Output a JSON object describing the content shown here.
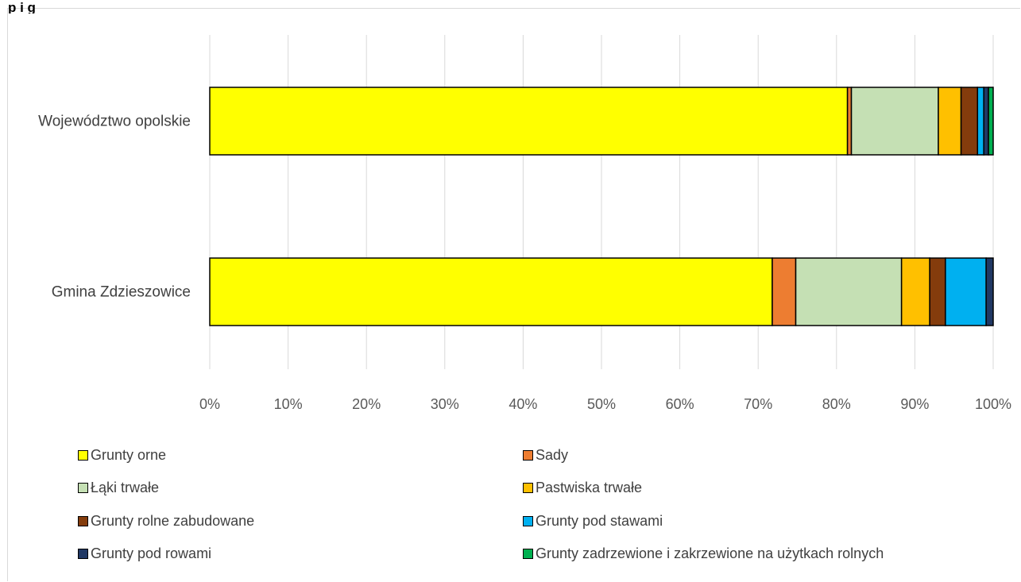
{
  "header": {
    "title_fragment": "p i g"
  },
  "chart_data": {
    "type": "bar",
    "orientation": "horizontal",
    "stacked": "percent",
    "title": "",
    "xlabel": "",
    "ylabel": "",
    "xlim": [
      0,
      100
    ],
    "grid": true,
    "legend_position": "bottom",
    "x_ticks": [
      "0%",
      "10%",
      "20%",
      "30%",
      "40%",
      "50%",
      "60%",
      "70%",
      "80%",
      "90%",
      "100%"
    ],
    "categories": [
      "Województwo opolskie",
      "Gmina Zdzieszowice"
    ],
    "series": [
      {
        "name": "Grunty orne",
        "color": "#FFFF00",
        "values": [
          81.4,
          71.8
        ]
      },
      {
        "name": "Sady",
        "color": "#ED7D31",
        "values": [
          0.5,
          3.0
        ]
      },
      {
        "name": "Łąki trwałe",
        "color": "#C5E0B4",
        "values": [
          11.1,
          13.5
        ]
      },
      {
        "name": "Pastwiska trwałe",
        "color": "#FFC000",
        "values": [
          2.9,
          3.6
        ]
      },
      {
        "name": "Grunty rolne zabudowane",
        "color": "#843C0C",
        "values": [
          2.1,
          2.0
        ]
      },
      {
        "name": "Grunty pod stawami",
        "color": "#00B0F0",
        "values": [
          0.8,
          5.2
        ]
      },
      {
        "name": "Grunty pod rowami",
        "color": "#203864",
        "values": [
          0.6,
          0.9
        ]
      },
      {
        "name": "Grunty zadrzewione i zakrzewione na użytkach rolnych",
        "color": "#00B050",
        "values": [
          0.6,
          0.0
        ]
      }
    ]
  }
}
